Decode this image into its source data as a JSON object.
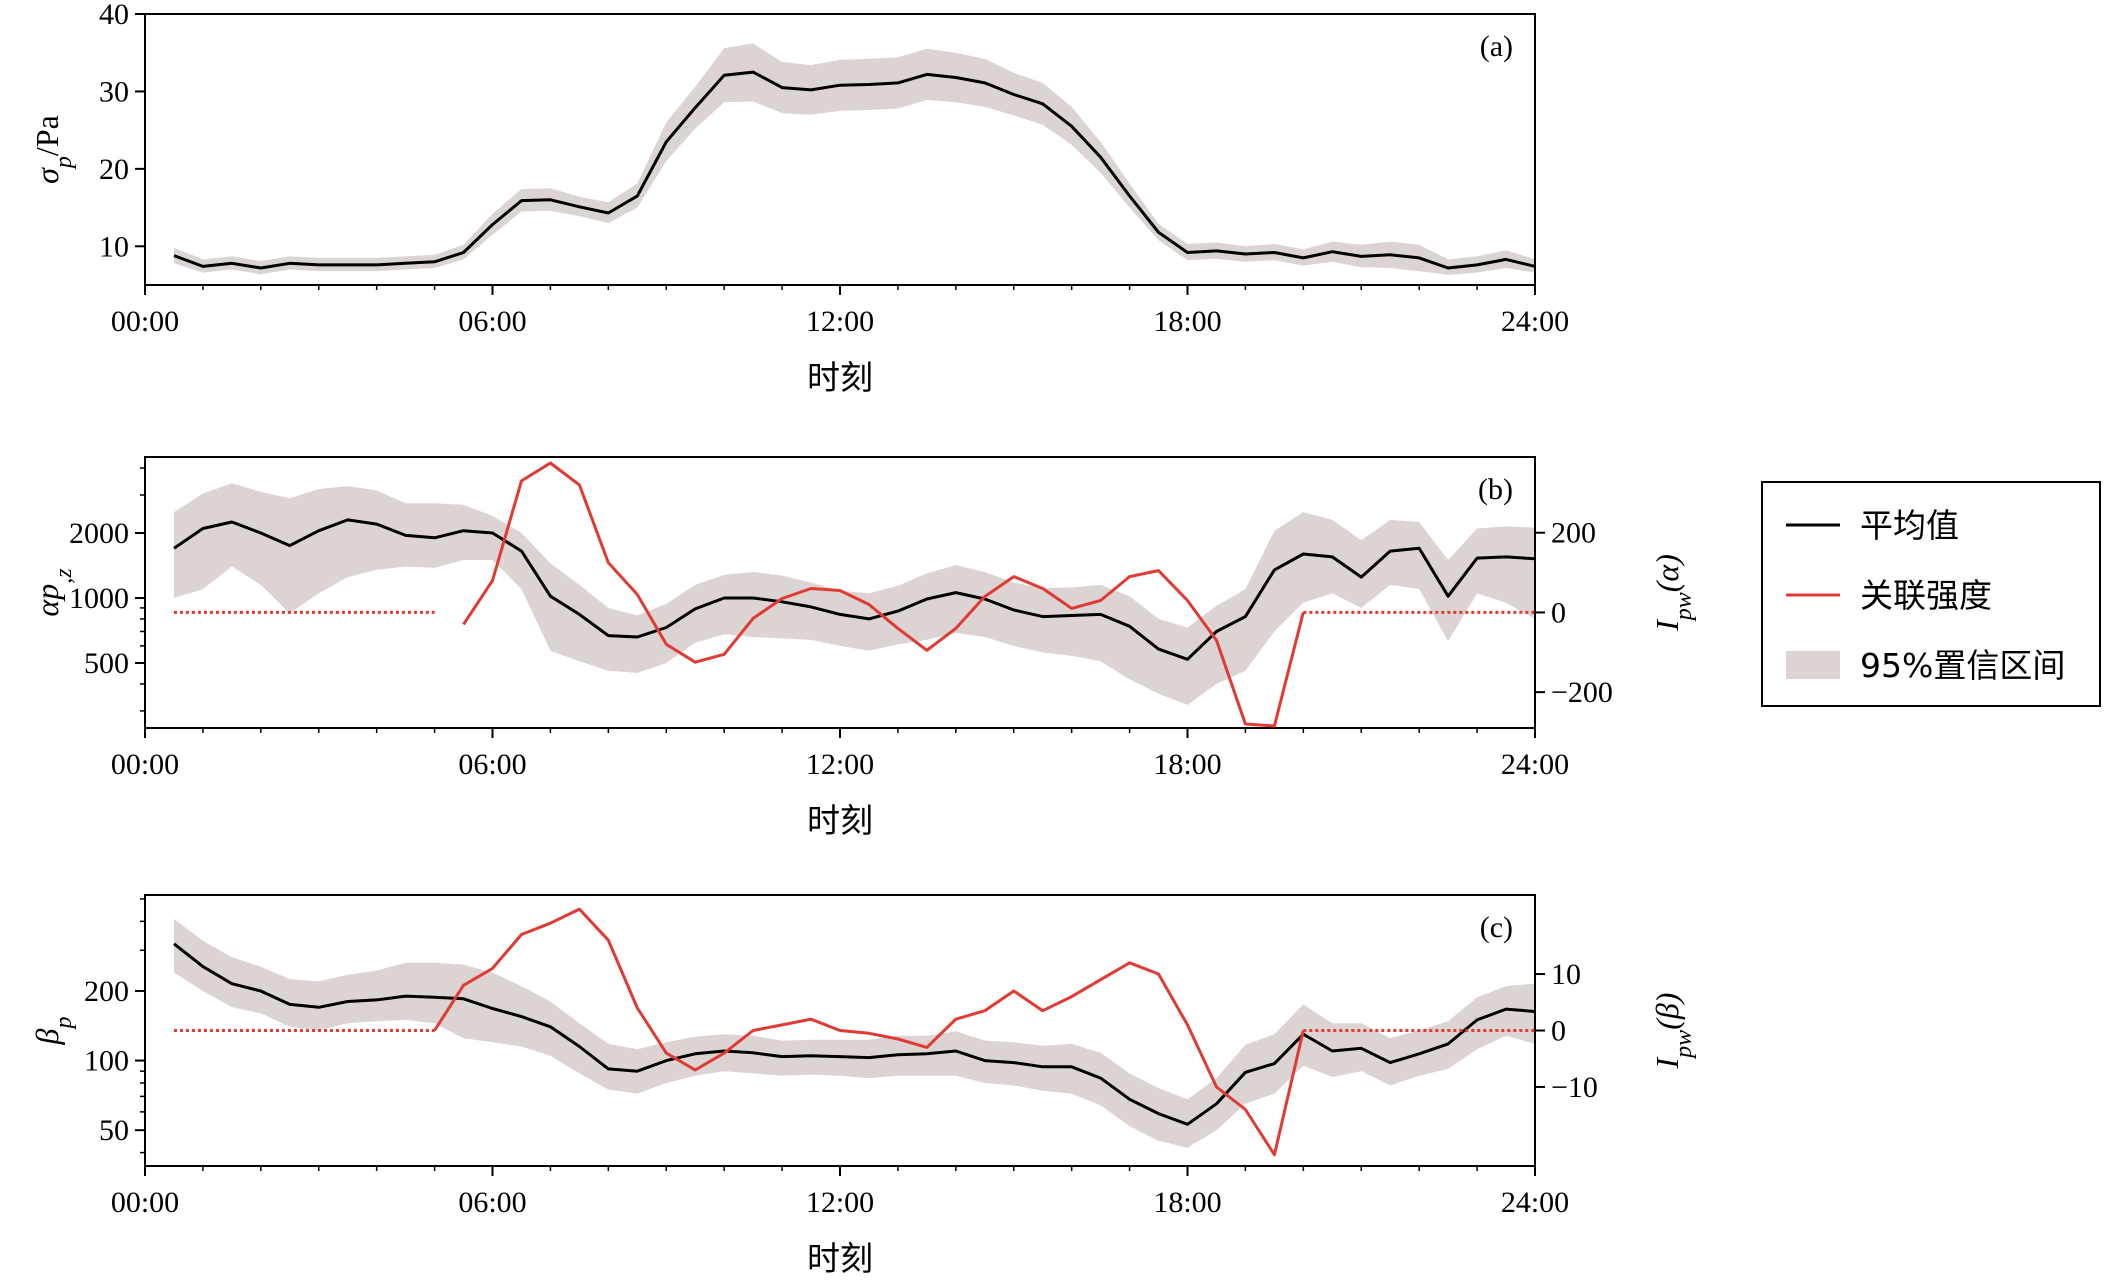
{
  "chart_data": [
    {
      "id": "a",
      "type": "line",
      "panel_label": "(a)",
      "xlabel": "时刻",
      "ylabel": "σp/Pa",
      "x_ticks": [
        "00:00",
        "06:00",
        "12:00",
        "18:00",
        "24:00"
      ],
      "xlim": [
        0,
        24
      ],
      "y_scale": "linear",
      "ylim": [
        5,
        40
      ],
      "y_ticks": [
        10,
        20,
        30,
        40
      ],
      "y_tick_labels": [
        "10",
        "20",
        "30",
        "40"
      ],
      "hours": [
        0.5,
        1.0,
        1.5,
        2.0,
        2.5,
        3.0,
        3.5,
        4.0,
        4.5,
        5.0,
        5.5,
        6.0,
        6.5,
        7.0,
        7.5,
        8.0,
        8.5,
        9.0,
        9.5,
        10.0,
        10.5,
        11.0,
        11.5,
        12.0,
        12.5,
        13.0,
        13.5,
        14.0,
        14.5,
        15.0,
        15.5,
        16.0,
        16.5,
        17.0,
        17.5,
        18.0,
        18.5,
        19.0,
        19.5,
        20.0,
        20.5,
        21.0,
        21.5,
        22.0,
        22.5,
        23.0,
        23.5,
        24.0
      ],
      "series": [
        {
          "name": "平均值",
          "values": [
            8.8,
            7.4,
            7.8,
            7.2,
            7.8,
            7.6,
            7.6,
            7.6,
            7.8,
            8.0,
            9.2,
            12.8,
            15.9,
            16.0,
            15.1,
            14.3,
            16.5,
            23.5,
            27.9,
            32.1,
            32.5,
            30.5,
            30.2,
            30.8,
            30.9,
            31.1,
            32.2,
            31.8,
            31.1,
            29.6,
            28.4,
            25.5,
            21.5,
            16.5,
            11.8,
            9.2,
            9.4,
            9.0,
            9.2,
            8.5,
            9.3,
            8.7,
            8.9,
            8.5,
            7.2,
            7.6,
            8.3,
            7.4
          ]
        }
      ],
      "ci_lower": [
        7.8,
        6.6,
        7.0,
        6.4,
        7.0,
        6.8,
        6.8,
        6.8,
        7.0,
        7.2,
        8.3,
        11.5,
        14.5,
        14.6,
        13.9,
        13.0,
        15.0,
        21.0,
        25.2,
        28.6,
        28.7,
        27.2,
        27.0,
        27.5,
        27.6,
        27.8,
        28.9,
        28.6,
        28.0,
        26.9,
        25.7,
        23.1,
        19.5,
        15.0,
        10.8,
        8.2,
        8.4,
        8.0,
        8.2,
        7.5,
        8.0,
        7.3,
        7.2,
        6.8,
        6.3,
        6.6,
        7.2,
        6.6
      ],
      "ci_upper": [
        9.8,
        8.3,
        8.7,
        8.1,
        8.7,
        8.5,
        8.5,
        8.5,
        8.7,
        8.9,
        10.2,
        14.2,
        17.4,
        17.5,
        16.4,
        15.7,
        18.1,
        26.0,
        30.6,
        35.6,
        36.2,
        33.8,
        33.4,
        34.1,
        34.2,
        34.4,
        35.5,
        35.0,
        34.2,
        32.4,
        31.1,
        28.0,
        23.5,
        18.1,
        12.9,
        10.3,
        10.5,
        10.0,
        10.3,
        9.6,
        10.6,
        10.2,
        10.6,
        10.2,
        8.3,
        8.7,
        9.5,
        8.3
      ]
    },
    {
      "id": "b",
      "type": "line",
      "panel_label": "(b)",
      "xlabel": "时刻",
      "ylabel": "αp,z",
      "y2label": "Ipw(α)",
      "x_ticks": [
        "00:00",
        "06:00",
        "12:00",
        "18:00",
        "24:00"
      ],
      "xlim": [
        0,
        24
      ],
      "y_scale": "log",
      "ylim": [
        250,
        4500
      ],
      "y_ticks": [
        500,
        1000,
        2000
      ],
      "y_tick_labels": [
        "500",
        "1000",
        "2000"
      ],
      "y2lim": [
        -290,
        390
      ],
      "y2_ticks": [
        -200,
        0,
        200
      ],
      "y2_tick_labels": [
        "−200",
        "0",
        "200"
      ],
      "hours": [
        0.5,
        1.0,
        1.5,
        2.0,
        2.5,
        3.0,
        3.5,
        4.0,
        4.5,
        5.0,
        5.5,
        6.0,
        6.5,
        7.0,
        7.5,
        8.0,
        8.5,
        9.0,
        9.5,
        10.0,
        10.5,
        11.0,
        11.5,
        12.0,
        12.5,
        13.0,
        13.5,
        14.0,
        14.5,
        15.0,
        15.5,
        16.0,
        16.5,
        17.0,
        17.5,
        18.0,
        18.5,
        19.0,
        19.5,
        20.0,
        20.5,
        21.0,
        21.5,
        22.0,
        22.5,
        23.0,
        23.5,
        24.0
      ],
      "series": [
        {
          "name": "平均值",
          "values": [
            1700,
            2100,
            2250,
            2000,
            1750,
            2050,
            2300,
            2200,
            1950,
            1900,
            2050,
            2000,
            1650,
            1020,
            840,
            670,
            660,
            730,
            890,
            1000,
            1000,
            960,
            910,
            840,
            800,
            870,
            990,
            1060,
            990,
            880,
            820,
            830,
            840,
            740,
            580,
            520,
            700,
            820,
            1350,
            1600,
            1550,
            1250,
            1650,
            1700,
            1020,
            1530,
            1550,
            1520
          ]
        },
        {
          "name": "关联强度",
          "axis": "right",
          "hours": [
            5.5,
            6.0,
            6.5,
            7.0,
            7.5,
            8.0,
            8.5,
            9.0,
            9.5,
            10.0,
            10.5,
            11.0,
            11.5,
            12.0,
            12.5,
            13.0,
            13.5,
            14.0,
            14.5,
            15.0,
            15.5,
            16.0,
            16.5,
            17.0,
            17.5,
            18.0,
            18.5,
            19.0,
            19.5,
            20.0
          ],
          "values": [
            -30,
            80,
            330,
            375,
            320,
            125,
            45,
            -80,
            -125,
            -105,
            -15,
            35,
            60,
            55,
            20,
            -40,
            -95,
            -40,
            40,
            90,
            60,
            10,
            30,
            90,
            105,
            30,
            -70,
            -280,
            -285,
            0
          ],
          "baseline_dotted": [
            [
              0.5,
              5.0
            ],
            [
              20.0,
              24.0
            ]
          ]
        }
      ],
      "ci_lower": [
        1000,
        1100,
        1400,
        1150,
        850,
        1050,
        1250,
        1350,
        1400,
        1380,
        1500,
        1500,
        1100,
        570,
        510,
        460,
        450,
        500,
        620,
        680,
        660,
        650,
        640,
        600,
        570,
        610,
        640,
        690,
        660,
        600,
        560,
        540,
        510,
        420,
        360,
        320,
        400,
        460,
        700,
        950,
        1050,
        900,
        1150,
        1100,
        630,
        1050,
        950,
        800
      ],
      "ci_upper": [
        2500,
        3050,
        3400,
        3100,
        2900,
        3200,
        3300,
        3150,
        2750,
        2750,
        2700,
        2400,
        2000,
        1450,
        1150,
        900,
        830,
        940,
        1150,
        1280,
        1320,
        1270,
        1180,
        1080,
        1050,
        1140,
        1300,
        1420,
        1320,
        1180,
        1110,
        1120,
        1150,
        1020,
        800,
        730,
        920,
        1100,
        2050,
        2500,
        2300,
        1850,
        2300,
        2250,
        1500,
        2100,
        2150,
        2120
      ]
    },
    {
      "id": "c",
      "type": "line",
      "panel_label": "(c)",
      "xlabel": "时刻",
      "ylabel": "βp",
      "y2label": "Ipw(β)",
      "x_ticks": [
        "00:00",
        "06:00",
        "12:00",
        "18:00",
        "24:00"
      ],
      "xlim": [
        0,
        24
      ],
      "y_scale": "log",
      "ylim": [
        35,
        520
      ],
      "y_ticks": [
        50,
        100,
        200
      ],
      "y_tick_labels": [
        "50",
        "100",
        "200"
      ],
      "y2lim": [
        -24,
        24
      ],
      "y2_ticks": [
        -10,
        0,
        10
      ],
      "y2_tick_labels": [
        "−10",
        "0",
        "10"
      ],
      "hours": [
        0.5,
        1.0,
        1.5,
        2.0,
        2.5,
        3.0,
        3.5,
        4.0,
        4.5,
        5.0,
        5.5,
        6.0,
        6.5,
        7.0,
        7.5,
        8.0,
        8.5,
        9.0,
        9.5,
        10.0,
        10.5,
        11.0,
        11.5,
        12.0,
        12.5,
        13.0,
        13.5,
        14.0,
        14.5,
        15.0,
        15.5,
        16.0,
        16.5,
        17.0,
        17.5,
        18.0,
        18.5,
        19.0,
        19.5,
        20.0,
        20.5,
        21.0,
        21.5,
        22.0,
        22.5,
        23.0,
        23.5,
        24.0
      ],
      "series": [
        {
          "name": "平均值",
          "values": [
            320,
            255,
            215,
            200,
            175,
            170,
            180,
            183,
            190,
            188,
            185,
            168,
            155,
            140,
            115,
            92,
            90,
            100,
            107,
            110,
            108,
            104,
            105,
            104,
            103,
            106,
            107,
            110,
            100,
            98,
            94,
            94,
            84,
            68,
            59,
            53,
            65,
            89,
            97,
            130,
            110,
            113,
            98,
            107,
            118,
            150,
            167,
            163
          ]
        },
        {
          "name": "关联强度",
          "axis": "right",
          "hours": [
            5.0,
            5.5,
            6.0,
            6.5,
            7.0,
            7.5,
            8.0,
            8.5,
            9.0,
            9.5,
            10.0,
            10.5,
            11.0,
            11.5,
            12.0,
            12.5,
            13.0,
            13.5,
            14.0,
            14.5,
            15.0,
            15.5,
            16.0,
            16.5,
            17.0,
            17.5,
            18.0,
            18.5,
            19.0,
            19.5,
            20.0
          ],
          "values": [
            0,
            8,
            11,
            17,
            19,
            21.5,
            16,
            4,
            -4,
            -7,
            -4,
            0,
            1,
            2,
            0,
            -0.5,
            -1.5,
            -3,
            2,
            3.5,
            7,
            3.5,
            6,
            9,
            12,
            10,
            1,
            -10,
            -14,
            -22,
            0
          ],
          "baseline_dotted": [
            [
              0.5,
              5.0
            ],
            [
              20.0,
              24.0
            ]
          ]
        }
      ],
      "ci_lower": [
        240,
        200,
        170,
        160,
        140,
        135,
        145,
        148,
        150,
        145,
        125,
        120,
        115,
        105,
        88,
        75,
        72,
        80,
        86,
        90,
        88,
        86,
        87,
        86,
        84,
        86,
        86,
        86,
        80,
        78,
        74,
        72,
        64,
        52,
        45,
        42,
        50,
        65,
        72,
        95,
        85,
        90,
        78,
        86,
        92,
        112,
        128,
        118
      ],
      "ci_upper": [
        410,
        330,
        280,
        255,
        225,
        220,
        235,
        245,
        265,
        265,
        260,
        240,
        210,
        180,
        145,
        118,
        112,
        120,
        127,
        130,
        128,
        122,
        123,
        123,
        123,
        128,
        128,
        134,
        122,
        120,
        116,
        118,
        108,
        88,
        76,
        68,
        84,
        117,
        130,
        175,
        145,
        145,
        125,
        135,
        148,
        188,
        210,
        215
      ]
    }
  ],
  "legend": {
    "items": [
      {
        "label": "平均值",
        "kind": "line",
        "color": "#000000"
      },
      {
        "label": "关联强度",
        "kind": "line",
        "color": "#e03a34"
      },
      {
        "label": "95%置信区间",
        "kind": "patch",
        "color": "#dcd4d2"
      }
    ]
  },
  "colors": {
    "mean": "#000000",
    "correlation": "#e03a34",
    "ci": "#dcd4d2"
  }
}
